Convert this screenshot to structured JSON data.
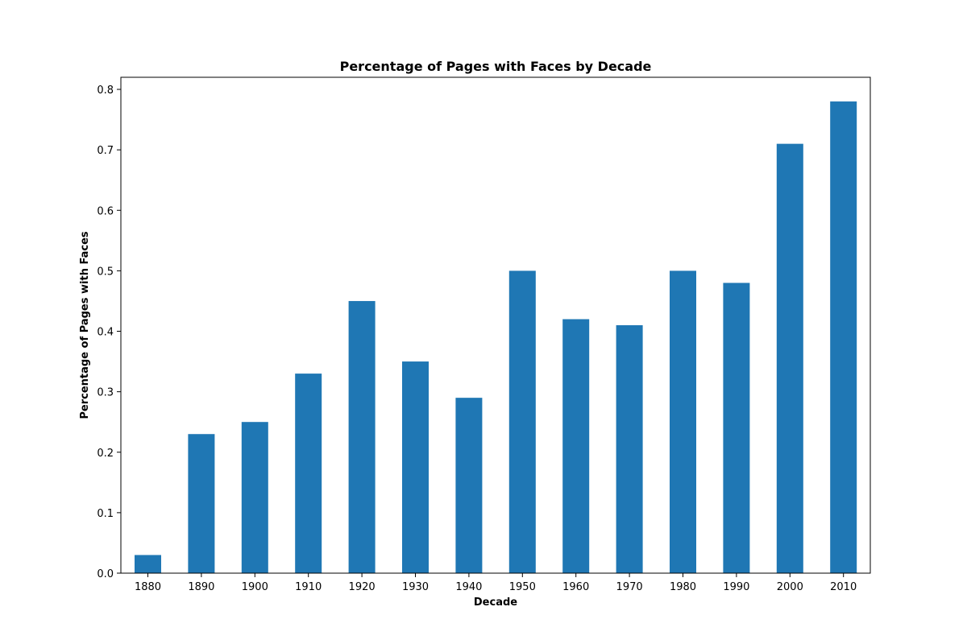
{
  "chart_data": {
    "type": "bar",
    "title": "Percentage of Pages with Faces by Decade",
    "xlabel": "Decade",
    "ylabel": "Percentage of Pages with Faces",
    "categories": [
      "1880",
      "1890",
      "1900",
      "1910",
      "1920",
      "1930",
      "1940",
      "1950",
      "1960",
      "1970",
      "1980",
      "1990",
      "2000",
      "2010"
    ],
    "values": [
      0.03,
      0.23,
      0.25,
      0.33,
      0.45,
      0.35,
      0.29,
      0.5,
      0.42,
      0.41,
      0.5,
      0.48,
      0.71,
      0.78
    ],
    "ylim": [
      0,
      0.82
    ],
    "yticks": [
      "0.0",
      "0.1",
      "0.2",
      "0.3",
      "0.4",
      "0.5",
      "0.6",
      "0.7",
      "0.8"
    ],
    "bar_color": "#1f77b4",
    "grid": false,
    "legend": "none"
  }
}
